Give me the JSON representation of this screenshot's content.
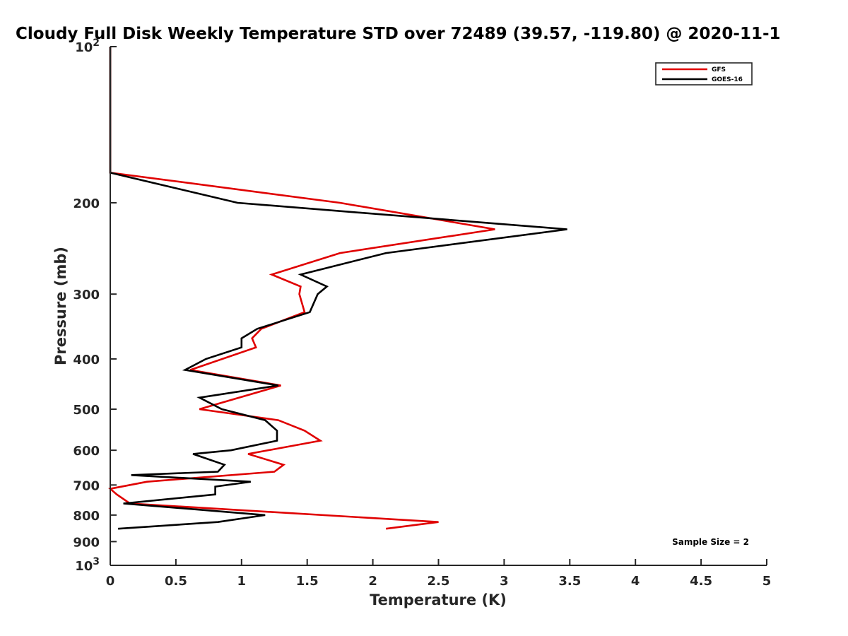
{
  "chart_data": {
    "type": "line",
    "title": "Cloudy Full Disk Weekly Temperature STD over 72489 (39.57, -119.80) @ 2020-11-1",
    "xlabel": "Temperature (K)",
    "ylabel": "Pressure (mb)",
    "xlim": [
      0,
      5
    ],
    "ylim": [
      100,
      1000
    ],
    "y_scale": "log",
    "y_reversed": true,
    "x_ticks": [
      0,
      0.5,
      1,
      1.5,
      2,
      2.5,
      3,
      3.5,
      4,
      4.5,
      5
    ],
    "x_tick_labels": [
      "0",
      "0.5",
      "1",
      "1.5",
      "2",
      "2.5",
      "3",
      "3.5",
      "4",
      "4.5",
      "5"
    ],
    "y_ticks": [
      200,
      300,
      400,
      500,
      600,
      700,
      800,
      900
    ],
    "y_tick_labels": [
      "200",
      "300",
      "400",
      "500",
      "600",
      "700",
      "800",
      "900"
    ],
    "y_edge_labels": [
      {
        "value": 100,
        "base": "10",
        "exp": "2"
      },
      {
        "value": 1000,
        "base": "10",
        "exp": "3"
      }
    ],
    "grid": false,
    "legend_position": "top-right",
    "series": [
      {
        "name": "GFS",
        "color": "#e00000",
        "points": [
          [
            0,
            100
          ],
          [
            0,
            125
          ],
          [
            0,
            175
          ],
          [
            1.75,
            200
          ],
          [
            2.93,
            225
          ],
          [
            1.75,
            250
          ],
          [
            1.23,
            275
          ],
          [
            1.45,
            290
          ],
          [
            1.44,
            300
          ],
          [
            1.48,
            325
          ],
          [
            1.15,
            350
          ],
          [
            1.08,
            365
          ],
          [
            1.11,
            380
          ],
          [
            0.61,
            420
          ],
          [
            1.3,
            450
          ],
          [
            0.68,
            500
          ],
          [
            1.28,
            525
          ],
          [
            1.48,
            550
          ],
          [
            1.6,
            575
          ],
          [
            1.05,
            610
          ],
          [
            1.32,
            640
          ],
          [
            1.25,
            660
          ],
          [
            0.28,
            690
          ],
          [
            0,
            712
          ],
          [
            0.05,
            730
          ],
          [
            0.15,
            760
          ],
          [
            2.5,
            825
          ],
          [
            2.1,
            850
          ]
        ]
      },
      {
        "name": "GOES-16",
        "color": "#000000",
        "points": [
          [
            0,
            100
          ],
          [
            0,
            125
          ],
          [
            0,
            175
          ],
          [
            0.97,
            200
          ],
          [
            3.48,
            225
          ],
          [
            2.1,
            250
          ],
          [
            1.45,
            275
          ],
          [
            1.65,
            290
          ],
          [
            1.58,
            300
          ],
          [
            1.52,
            325
          ],
          [
            1.12,
            350
          ],
          [
            1.0,
            365
          ],
          [
            1.0,
            380
          ],
          [
            0.73,
            400
          ],
          [
            0.57,
            420
          ],
          [
            1.28,
            450
          ],
          [
            0.68,
            475
          ],
          [
            0.85,
            500
          ],
          [
            1.18,
            525
          ],
          [
            1.27,
            550
          ],
          [
            1.27,
            575
          ],
          [
            0.92,
            600
          ],
          [
            0.63,
            610
          ],
          [
            0.87,
            640
          ],
          [
            0.82,
            660
          ],
          [
            0.16,
            670
          ],
          [
            1.07,
            690
          ],
          [
            0.8,
            705
          ],
          [
            0.8,
            730
          ],
          [
            0.1,
            760
          ],
          [
            1.18,
            800
          ],
          [
            0.82,
            825
          ],
          [
            0.06,
            850
          ]
        ]
      }
    ],
    "annotations": [
      "Sample Size = 2"
    ]
  }
}
